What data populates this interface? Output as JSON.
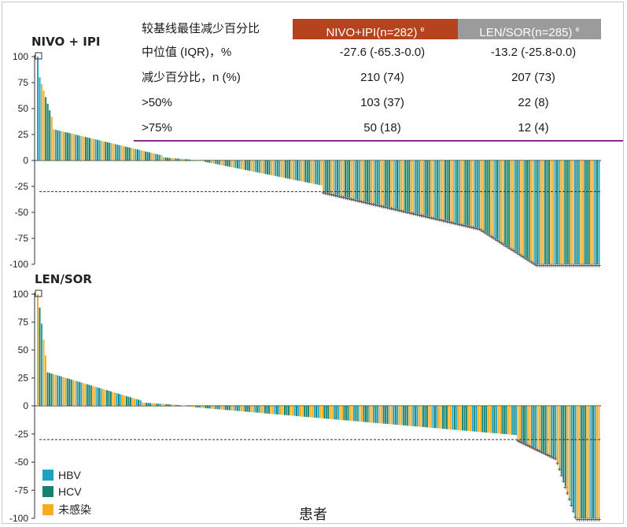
{
  "colors": {
    "HBV": "#1da3c1",
    "HCV": "#14826e",
    "uninfected": "#f5ac20",
    "marker": "#555555",
    "table_rule": "#8b2a8b",
    "header_nivo": "#b5431e",
    "header_len": "#9b9b9b"
  },
  "table": {
    "title": "较基线最佳减少百分比",
    "header_nivo": "NIVO+IPI(n=282)",
    "header_nivo_sup": "e",
    "header_len": "LEN/SOR(n=285)",
    "header_len_sup": "e",
    "rows": [
      {
        "label": "中位值 (IQR)，%",
        "nivo": "-27.6 (-65.3-0.0)",
        "len": "-13.2 (-25.8-0.0)"
      },
      {
        "label": "减少百分比，n (%)",
        "nivo": "210 (74)",
        "len": "207 (73)"
      },
      {
        "label": ">50%",
        "nivo": "103 (37)",
        "len": "22 (8)"
      },
      {
        "label": ">75%",
        "nivo": "50 (18)",
        "len": "12 (4)"
      }
    ]
  },
  "legend": [
    {
      "key": "HBV",
      "label": "HBV"
    },
    {
      "key": "HCV",
      "label": "HCV"
    },
    {
      "key": "uninfected",
      "label": "未感染"
    }
  ],
  "chart_data": [
    {
      "type": "bar",
      "title": "NIVO + IPI",
      "xlabel": "",
      "ylabel": "",
      "ylim": [
        -100,
        100
      ],
      "yticks": [
        100,
        75,
        50,
        25,
        0,
        -25,
        -50,
        -75,
        -100
      ],
      "reference_line": -30,
      "n_patients": 282,
      "grid": false,
      "segments": [
        {
          "from": 100,
          "to": 100,
          "count": 1
        },
        {
          "from": 80,
          "to": 42,
          "count": 7
        },
        {
          "from": 30,
          "to": 5,
          "count": 55
        },
        {
          "from": 3,
          "to": 0,
          "count": 20
        },
        {
          "from": -1,
          "to": -24,
          "count": 60
        },
        {
          "from": -30,
          "to": -65,
          "count": 79
        },
        {
          "from": -66,
          "to": -99,
          "count": 28
        },
        {
          "from": -100,
          "to": -100,
          "count": 32
        }
      ],
      "capped_marker_threshold": -30
    },
    {
      "type": "bar",
      "title": "LEN/SOR",
      "xlabel": "患者",
      "ylabel": "",
      "ylim": [
        -100,
        100
      ],
      "yticks": [
        100,
        75,
        50,
        25,
        0,
        -25,
        -50,
        -75,
        -100
      ],
      "reference_line": -30,
      "n_patients": 285,
      "grid": false,
      "segments": [
        {
          "from": 100,
          "to": 100,
          "count": 1
        },
        {
          "from": 88,
          "to": 45,
          "count": 4
        },
        {
          "from": 30,
          "to": 5,
          "count": 48
        },
        {
          "from": 3,
          "to": 0,
          "count": 25
        },
        {
          "from": -1,
          "to": -26,
          "count": 165
        },
        {
          "from": -30,
          "to": -46,
          "count": 20
        },
        {
          "from": -50,
          "to": -98,
          "count": 10
        },
        {
          "from": -100,
          "to": -100,
          "count": 12
        }
      ],
      "capped_marker_threshold": -30
    }
  ]
}
